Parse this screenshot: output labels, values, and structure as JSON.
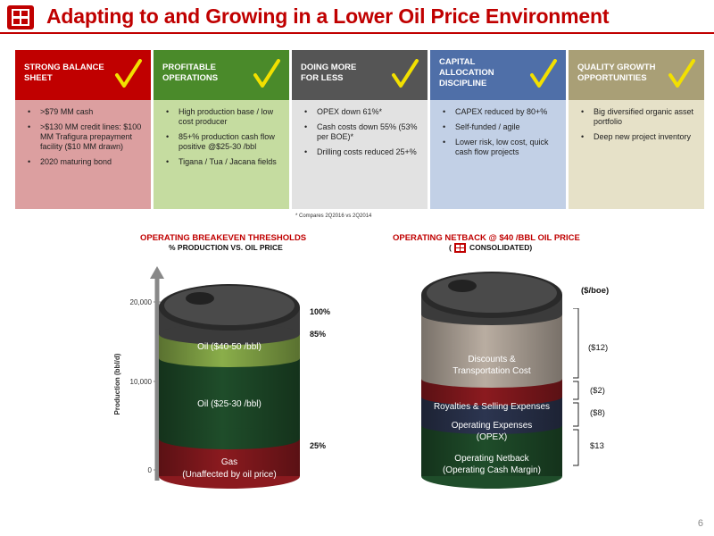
{
  "title": "Adapting to and Growing in a Lower Oil Price Environment",
  "colors": {
    "accent": "#c00000",
    "green": "#4a8a2a",
    "check": "#f2e000"
  },
  "boxes": [
    {
      "heading": [
        "STRONG BALANCE",
        "SHEET"
      ],
      "bullets": [
        ">$79 MM cash",
        ">$130 MM credit lines: $100 MM Trafigura prepayment facility ($10 MM drawn)",
        "2020 maturing bond"
      ]
    },
    {
      "heading": [
        "PROFITABLE",
        "OPERATIONS"
      ],
      "bullets": [
        "High production base / low cost producer",
        "85+% production cash flow positive @$25-30 /bbl",
        "Tigana / Tua / Jacana fields"
      ]
    },
    {
      "heading": [
        "DOING MORE",
        "FOR LESS"
      ],
      "bullets": [
        "OPEX down 61%*",
        "Cash costs down 55% (53% per BOE)*",
        "Drilling costs reduced 25+%"
      ]
    },
    {
      "heading": [
        "CAPITAL",
        "ALLOCATION",
        "DISCIPLINE"
      ],
      "bullets": [
        "CAPEX reduced by 80+%",
        "Self-funded / agile",
        "Lower risk, low cost, quick cash flow projects"
      ]
    },
    {
      "heading": [
        "QUALITY GROWTH",
        "OPPORTUNITIES"
      ],
      "bullets": [
        "Big diversified organic asset portfolio",
        "Deep new project inventory"
      ]
    }
  ],
  "footnote": "* Compares 2Q2016 vs 2Q2014",
  "left_chart": {
    "title": "OPERATING BREAKEVEN THRESHOLDS",
    "subtitle": "% PRODUCTION VS. OIL PRICE",
    "y_axis_label": "Production (bbl/d)",
    "y_ticks": [
      "20,000",
      "10,000",
      "0"
    ],
    "segments": [
      {
        "label": "Oil ($40-50 /bbl)",
        "color": "#8aae4a"
      },
      {
        "label": "Oil ($25-30 /bbl)",
        "color": "#1f4d2a"
      },
      {
        "label": "Gas",
        "label2": "(Unaffected by oil price)",
        "color": "#8b1a1f"
      }
    ],
    "markers": [
      "100%",
      "85%",
      "25%"
    ]
  },
  "right_chart": {
    "title": "OPERATING NETBACK @ $40 /BBL OIL PRICE",
    "subtitle_open": "(",
    "subtitle_close": "CONSOLIDATED)",
    "unit": "($/boe)",
    "segments": [
      {
        "label": "Discounts &",
        "label2": "Transportation Cost",
        "value": "($12)",
        "color": "#b9ada1"
      },
      {
        "label": "Royalties & Selling Expenses",
        "value": "($2)",
        "color": "#8b1a1f"
      },
      {
        "label": "Operating Expenses",
        "label2": "(OPEX)",
        "value": "($8)",
        "color": "#2c3550"
      },
      {
        "label": "Operating Netback",
        "label2": "(Operating Cash Margin)",
        "value": "$13",
        "color": "#1f4d2a"
      }
    ]
  },
  "page_number": "6"
}
